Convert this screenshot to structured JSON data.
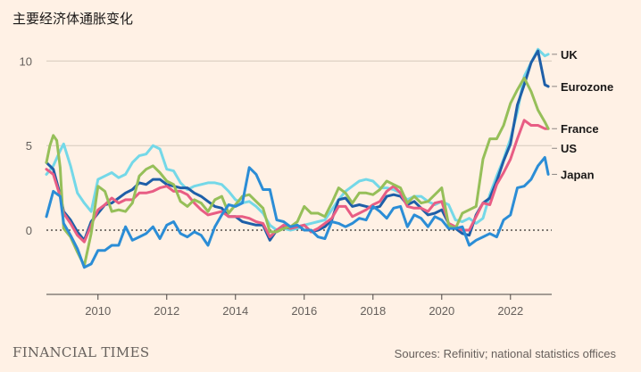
{
  "title": "主要经济体通胀变化",
  "footer": {
    "brand": "FINANCIAL TIMES",
    "source": "Sources: Refinitiv; national statistics offices"
  },
  "chart_data": {
    "type": "line",
    "title": "主要经济体通胀变化",
    "xlabel": "",
    "ylabel": "",
    "xlim": [
      2008.5,
      2023.2
    ],
    "ylim": [
      -3.8,
      11.5
    ],
    "x_ticks": [
      2010,
      2012,
      2014,
      2016,
      2018,
      2020,
      2022
    ],
    "y_ticks": [
      0,
      5,
      10
    ],
    "zero_line": "dotted",
    "grid": "horizontal",
    "series": [
      {
        "name": "UK",
        "color": "#74d8e8",
        "x": [
          2008.5,
          2008.7,
          2008.9,
          2009.0,
          2009.2,
          2009.4,
          2009.6,
          2009.8,
          2010.0,
          2010.2,
          2010.4,
          2010.6,
          2010.8,
          2011.0,
          2011.2,
          2011.4,
          2011.6,
          2011.8,
          2012.0,
          2012.2,
          2012.4,
          2012.6,
          2012.8,
          2013.0,
          2013.2,
          2013.4,
          2013.6,
          2013.8,
          2014.0,
          2014.2,
          2014.4,
          2014.6,
          2014.8,
          2015.0,
          2015.2,
          2015.4,
          2015.6,
          2015.8,
          2016.0,
          2016.2,
          2016.4,
          2016.6,
          2016.8,
          2017.0,
          2017.2,
          2017.4,
          2017.6,
          2017.8,
          2018.0,
          2018.2,
          2018.4,
          2018.6,
          2018.8,
          2019.0,
          2019.2,
          2019.4,
          2019.6,
          2019.8,
          2020.0,
          2020.2,
          2020.4,
          2020.6,
          2020.8,
          2021.0,
          2021.2,
          2021.4,
          2021.6,
          2021.8,
          2022.0,
          2022.2,
          2022.4,
          2022.6,
          2022.8,
          2023.0,
          2023.1
        ],
        "values": [
          3.3,
          3.8,
          4.7,
          5.1,
          3.8,
          2.2,
          1.6,
          1.1,
          3.0,
          3.2,
          3.4,
          3.1,
          3.3,
          4.0,
          4.4,
          4.5,
          5.0,
          4.8,
          3.6,
          3.5,
          2.8,
          2.4,
          2.6,
          2.7,
          2.8,
          2.8,
          2.7,
          2.3,
          1.8,
          1.6,
          1.7,
          1.4,
          1.0,
          0.3,
          0.0,
          0.1,
          0.0,
          0.1,
          0.3,
          0.4,
          0.5,
          0.6,
          1.2,
          1.8,
          2.3,
          2.6,
          2.9,
          3.0,
          2.9,
          2.5,
          2.5,
          2.4,
          2.2,
          1.8,
          2.0,
          2.0,
          1.7,
          1.5,
          1.7,
          1.5,
          0.6,
          0.5,
          0.7,
          0.4,
          0.7,
          2.1,
          3.2,
          4.2,
          5.4,
          7.0,
          9.1,
          9.9,
          10.7,
          10.3,
          10.4
        ]
      },
      {
        "name": "Eurozone",
        "color": "#1e5fa8",
        "x": [
          2008.5,
          2008.7,
          2008.9,
          2009.0,
          2009.2,
          2009.4,
          2009.6,
          2009.8,
          2010.0,
          2010.2,
          2010.4,
          2010.6,
          2010.8,
          2011.0,
          2011.2,
          2011.4,
          2011.6,
          2011.8,
          2012.0,
          2012.2,
          2012.4,
          2012.6,
          2012.8,
          2013.0,
          2013.2,
          2013.4,
          2013.6,
          2013.8,
          2014.0,
          2014.2,
          2014.4,
          2014.6,
          2014.8,
          2015.0,
          2015.2,
          2015.4,
          2015.6,
          2015.8,
          2016.0,
          2016.2,
          2016.4,
          2016.6,
          2016.8,
          2017.0,
          2017.2,
          2017.4,
          2017.6,
          2017.8,
          2018.0,
          2018.2,
          2018.4,
          2018.6,
          2018.8,
          2019.0,
          2019.2,
          2019.4,
          2019.6,
          2019.8,
          2020.0,
          2020.2,
          2020.4,
          2020.6,
          2020.8,
          2021.0,
          2021.2,
          2021.4,
          2021.6,
          2021.8,
          2022.0,
          2022.2,
          2022.4,
          2022.6,
          2022.8,
          2023.0,
          2023.1
        ],
        "values": [
          4.0,
          3.6,
          2.1,
          1.1,
          0.6,
          -0.1,
          -0.6,
          0.5,
          1.0,
          1.5,
          1.6,
          1.9,
          2.2,
          2.4,
          2.8,
          2.7,
          3.0,
          3.0,
          2.7,
          2.6,
          2.5,
          2.5,
          2.2,
          2.0,
          1.7,
          1.4,
          1.3,
          0.8,
          0.8,
          0.5,
          0.4,
          0.3,
          0.3,
          -0.6,
          0.0,
          0.2,
          0.1,
          0.2,
          0.3,
          -0.1,
          0.0,
          0.2,
          0.6,
          1.8,
          1.9,
          1.4,
          1.5,
          1.4,
          1.3,
          1.4,
          2.0,
          2.1,
          2.0,
          1.5,
          1.7,
          1.3,
          0.9,
          1.0,
          1.2,
          0.4,
          0.1,
          -0.2,
          -0.3,
          0.9,
          1.6,
          1.9,
          2.9,
          4.1,
          5.1,
          7.4,
          8.6,
          9.9,
          10.6,
          8.6,
          8.5
        ]
      },
      {
        "name": "France",
        "color": "#e85d84",
        "x": [
          2008.5,
          2008.7,
          2008.9,
          2009.0,
          2009.2,
          2009.4,
          2009.6,
          2009.8,
          2010.0,
          2010.2,
          2010.4,
          2010.6,
          2010.8,
          2011.0,
          2011.2,
          2011.4,
          2011.6,
          2011.8,
          2012.0,
          2012.2,
          2012.4,
          2012.6,
          2012.8,
          2013.0,
          2013.2,
          2013.4,
          2013.6,
          2013.8,
          2014.0,
          2014.2,
          2014.4,
          2014.6,
          2014.8,
          2015.0,
          2015.2,
          2015.4,
          2015.6,
          2015.8,
          2016.0,
          2016.2,
          2016.4,
          2016.6,
          2016.8,
          2017.0,
          2017.2,
          2017.4,
          2017.6,
          2017.8,
          2018.0,
          2018.2,
          2018.4,
          2018.6,
          2018.8,
          2019.0,
          2019.2,
          2019.4,
          2019.6,
          2019.8,
          2020.0,
          2020.2,
          2020.4,
          2020.6,
          2020.8,
          2021.0,
          2021.2,
          2021.4,
          2021.6,
          2021.8,
          2022.0,
          2022.2,
          2022.4,
          2022.6,
          2022.8,
          2023.0,
          2023.1
        ],
        "values": [
          3.6,
          3.3,
          2.0,
          1.0,
          0.4,
          -0.3,
          -0.7,
          0.3,
          1.2,
          1.5,
          1.9,
          1.6,
          1.8,
          1.8,
          2.2,
          2.2,
          2.3,
          2.5,
          2.6,
          2.3,
          2.3,
          2.1,
          1.6,
          1.2,
          0.9,
          1.0,
          1.1,
          0.8,
          0.8,
          0.8,
          0.7,
          0.5,
          0.4,
          -0.4,
          0.0,
          0.3,
          0.1,
          0.2,
          0.3,
          -0.1,
          0.1,
          0.4,
          0.7,
          1.4,
          1.4,
          0.8,
          1.0,
          1.2,
          1.5,
          1.7,
          2.3,
          2.6,
          2.2,
          1.4,
          1.3,
          1.3,
          1.1,
          1.6,
          1.7,
          0.4,
          0.2,
          0.0,
          0.0,
          0.8,
          1.6,
          1.5,
          2.7,
          3.4,
          4.2,
          5.4,
          6.5,
          6.2,
          6.2,
          6.0,
          6.0
        ]
      },
      {
        "name": "US",
        "color": "#96bf59",
        "x": [
          2008.5,
          2008.6,
          2008.7,
          2008.8,
          2008.9,
          2009.0,
          2009.2,
          2009.4,
          2009.6,
          2009.8,
          2010.0,
          2010.2,
          2010.4,
          2010.6,
          2010.8,
          2011.0,
          2011.2,
          2011.4,
          2011.6,
          2011.8,
          2012.0,
          2012.2,
          2012.4,
          2012.6,
          2012.8,
          2013.0,
          2013.2,
          2013.4,
          2013.6,
          2013.8,
          2014.0,
          2014.2,
          2014.4,
          2014.6,
          2014.8,
          2015.0,
          2015.2,
          2015.4,
          2015.6,
          2015.8,
          2016.0,
          2016.2,
          2016.4,
          2016.6,
          2016.8,
          2017.0,
          2017.2,
          2017.4,
          2017.6,
          2017.8,
          2018.0,
          2018.2,
          2018.4,
          2018.6,
          2018.8,
          2019.0,
          2019.2,
          2019.4,
          2019.6,
          2019.8,
          2020.0,
          2020.2,
          2020.4,
          2020.6,
          2020.8,
          2021.0,
          2021.2,
          2021.4,
          2021.6,
          2021.8,
          2022.0,
          2022.2,
          2022.4,
          2022.6,
          2022.8,
          2023.0,
          2023.1
        ],
        "values": [
          4.0,
          5.0,
          5.6,
          5.3,
          3.7,
          0.1,
          -0.4,
          -1.3,
          -2.1,
          -0.2,
          2.6,
          2.3,
          1.1,
          1.2,
          1.1,
          1.6,
          3.2,
          3.6,
          3.8,
          3.4,
          2.9,
          2.7,
          1.7,
          1.4,
          1.8,
          1.6,
          1.1,
          1.8,
          2.0,
          1.0,
          1.5,
          2.0,
          2.1,
          1.7,
          1.3,
          -0.1,
          -0.1,
          0.1,
          0.2,
          0.5,
          1.4,
          1.0,
          1.0,
          0.8,
          1.6,
          2.5,
          2.2,
          1.6,
          2.2,
          2.2,
          2.1,
          2.4,
          2.9,
          2.7,
          2.5,
          1.6,
          2.0,
          1.6,
          1.7,
          2.1,
          2.5,
          0.3,
          0.1,
          1.0,
          1.2,
          1.4,
          4.2,
          5.4,
          5.4,
          6.2,
          7.5,
          8.3,
          9.0,
          8.2,
          7.1,
          6.4,
          6.0
        ]
      },
      {
        "name": "Japan",
        "color": "#2b8dd6",
        "x": [
          2008.5,
          2008.7,
          2008.9,
          2009.0,
          2009.2,
          2009.4,
          2009.6,
          2009.8,
          2010.0,
          2010.2,
          2010.4,
          2010.6,
          2010.8,
          2011.0,
          2011.2,
          2011.4,
          2011.6,
          2011.8,
          2012.0,
          2012.2,
          2012.4,
          2012.6,
          2012.8,
          2013.0,
          2013.2,
          2013.4,
          2013.6,
          2013.8,
          2014.0,
          2014.2,
          2014.4,
          2014.6,
          2014.8,
          2015.0,
          2015.2,
          2015.4,
          2015.6,
          2015.8,
          2016.0,
          2016.2,
          2016.4,
          2016.6,
          2016.8,
          2017.0,
          2017.2,
          2017.4,
          2017.6,
          2017.8,
          2018.0,
          2018.2,
          2018.4,
          2018.6,
          2018.8,
          2019.0,
          2019.2,
          2019.4,
          2019.6,
          2019.8,
          2020.0,
          2020.2,
          2020.4,
          2020.6,
          2020.8,
          2021.0,
          2021.2,
          2021.4,
          2021.6,
          2021.8,
          2022.0,
          2022.2,
          2022.4,
          2022.6,
          2022.8,
          2023.0,
          2023.1
        ],
        "values": [
          0.8,
          2.3,
          2.0,
          0.4,
          -0.3,
          -1.1,
          -2.2,
          -2.0,
          -1.2,
          -1.2,
          -0.9,
          -0.9,
          0.2,
          -0.6,
          -0.4,
          -0.2,
          0.2,
          -0.5,
          0.3,
          0.5,
          -0.2,
          -0.4,
          -0.1,
          -0.3,
          -0.9,
          0.2,
          0.9,
          1.5,
          1.4,
          1.6,
          3.7,
          3.3,
          2.4,
          2.4,
          0.6,
          0.5,
          0.2,
          0.3,
          0.0,
          0.0,
          -0.4,
          -0.5,
          0.5,
          0.4,
          0.2,
          0.4,
          0.7,
          0.6,
          1.4,
          1.1,
          0.7,
          1.3,
          1.4,
          0.2,
          0.9,
          0.7,
          0.2,
          0.8,
          0.6,
          0.1,
          0.1,
          0.2,
          -0.9,
          -0.6,
          -0.4,
          -0.2,
          -0.4,
          0.6,
          0.9,
          2.5,
          2.6,
          3.0,
          3.8,
          4.3,
          3.3
        ]
      }
    ],
    "label_colors": {
      "gridline": "#d6cabd",
      "axis": "#4a4542",
      "zero": "#33302e"
    }
  }
}
